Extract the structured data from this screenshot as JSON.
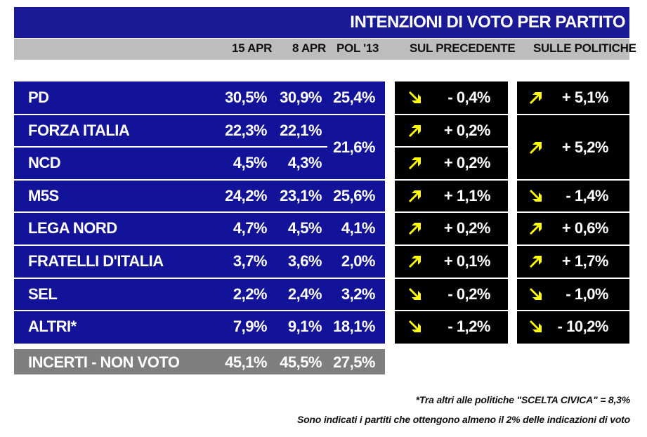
{
  "title": "INTENZIONI DI VOTO PER PARTITO",
  "headers": {
    "col1": "15 APR",
    "col2": "8 APR",
    "col3": "POL '13",
    "col4": "SUL PRECEDENTE",
    "col5": "SULLE POLITICHE"
  },
  "colors": {
    "title_bg": "#1a1a96",
    "panel_bg": "#13139a",
    "header_bg": "#bdbdbd",
    "delta_bg": "#000000",
    "arrow": "#ffff00",
    "incerti_bg": "#7f7f7f"
  },
  "rows": [
    {
      "party": "PD",
      "apr15": "30,5%",
      "apr8": "30,9%",
      "pol13": "25,4%",
      "prec_dir": "down",
      "prec": "- 0,4%",
      "pol_dir": "up",
      "pol": "+ 5,1%"
    },
    {
      "party": "FORZA ITALIA",
      "apr15": "22,3%",
      "apr8": "22,1%",
      "prec_dir": "up",
      "prec": "+ 0,2%"
    },
    {
      "party": "NCD",
      "apr15": "4,5%",
      "apr8": "4,3%",
      "prec_dir": "up",
      "prec": "+ 0,2%"
    },
    {
      "party": "M5S",
      "apr15": "24,2%",
      "apr8": "23,1%",
      "pol13": "25,6%",
      "prec_dir": "up",
      "prec": "+ 1,1%",
      "pol_dir": "down",
      "pol": "- 1,4%"
    },
    {
      "party": "LEGA NORD",
      "apr15": "4,7%",
      "apr8": "4,5%",
      "pol13": "4,1%",
      "prec_dir": "up",
      "prec": "+ 0,2%",
      "pol_dir": "up",
      "pol": "+ 0,6%"
    },
    {
      "party": "FRATELLI D'ITALIA",
      "apr15": "3,7%",
      "apr8": "3,6%",
      "pol13": "2,0%",
      "prec_dir": "up",
      "prec": "+ 0,1%",
      "pol_dir": "up",
      "pol": "+ 1,7%"
    },
    {
      "party": "SEL",
      "apr15": "2,2%",
      "apr8": "2,4%",
      "pol13": "3,2%",
      "prec_dir": "down",
      "prec": "- 0,2%",
      "pol_dir": "down",
      "pol": "- 1,0%"
    },
    {
      "party": "ALTRI*",
      "apr15": "7,9%",
      "apr8": "9,1%",
      "pol13": "18,1%",
      "prec_dir": "down",
      "prec": "- 1,2%",
      "pol_dir": "down",
      "pol": "- 10,2%"
    }
  ],
  "merged": {
    "fi_ncd_pol13": "21,6%",
    "fi_ncd_pol_dir": "up",
    "fi_ncd_pol": "+ 5,2%"
  },
  "incerti": {
    "label": "INCERTI - NON VOTO",
    "apr15": "45,1%",
    "apr8": "45,5%",
    "pol13": "27,5%"
  },
  "notes": {
    "line1": "*Tra altri alle politiche \"SCELTA CIVICA\" = 8,3%",
    "line2": "Sono indicati i partiti che ottengono almeno il 2% delle indicazioni di voto"
  },
  "chart_data": {
    "type": "table",
    "title": "INTENZIONI DI VOTO PER PARTITO",
    "columns": [
      "15 APR",
      "8 APR",
      "POL '13",
      "SUL PRECEDENTE",
      "SULLE POLITICHE"
    ],
    "rows": [
      [
        "PD",
        "30,5%",
        "30,9%",
        "25,4%",
        "- 0,4%",
        "+ 5,1%"
      ],
      [
        "FORZA ITALIA",
        "22,3%",
        "22,1%",
        "21,6%",
        "+ 0,2%",
        "+ 5,2%"
      ],
      [
        "NCD",
        "4,5%",
        "4,3%",
        "21,6%",
        "+ 0,2%",
        "+ 5,2%"
      ],
      [
        "M5S",
        "24,2%",
        "23,1%",
        "25,6%",
        "+ 1,1%",
        "- 1,4%"
      ],
      [
        "LEGA NORD",
        "4,7%",
        "4,5%",
        "4,1%",
        "+ 0,2%",
        "+ 0,6%"
      ],
      [
        "FRATELLI D'ITALIA",
        "3,7%",
        "3,6%",
        "2,0%",
        "+ 0,1%",
        "+ 1,7%"
      ],
      [
        "SEL",
        "2,2%",
        "2,4%",
        "3,2%",
        "- 0,2%",
        "- 1,0%"
      ],
      [
        "ALTRI*",
        "7,9%",
        "9,1%",
        "18,1%",
        "- 1,2%",
        "- 10,2%"
      ],
      [
        "INCERTI - NON VOTO",
        "45,1%",
        "45,5%",
        "27,5%",
        "",
        ""
      ]
    ]
  }
}
